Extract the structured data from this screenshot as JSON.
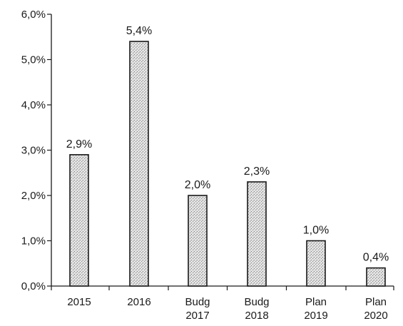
{
  "chart_data": {
    "type": "bar",
    "categories": [
      [
        "2015"
      ],
      [
        "2016"
      ],
      [
        "Budg",
        "2017"
      ],
      [
        "Budg",
        "2018"
      ],
      [
        "Plan",
        "2019"
      ],
      [
        "Plan",
        "2020"
      ]
    ],
    "values": [
      2.9,
      5.4,
      2.0,
      2.3,
      1.0,
      0.4
    ],
    "data_labels": [
      "2,9%",
      "5,4%",
      "2,0%",
      "2,3%",
      "1,0%",
      "0,4%"
    ],
    "ylim": [
      0,
      6
    ],
    "y_ticks": [
      {
        "value": 0,
        "label": "0,0%"
      },
      {
        "value": 1,
        "label": "1,0%"
      },
      {
        "value": 2,
        "label": "2,0%"
      },
      {
        "value": 3,
        "label": "3,0%"
      },
      {
        "value": 4,
        "label": "4,0%"
      },
      {
        "value": 5,
        "label": "5,0%"
      },
      {
        "value": 6,
        "label": "6,0%"
      }
    ],
    "grid": false,
    "legend": "none",
    "bar_fill": "#d4d4d4",
    "bar_stroke": "#1a1a1a",
    "axis_color": "#1a1a1a"
  }
}
